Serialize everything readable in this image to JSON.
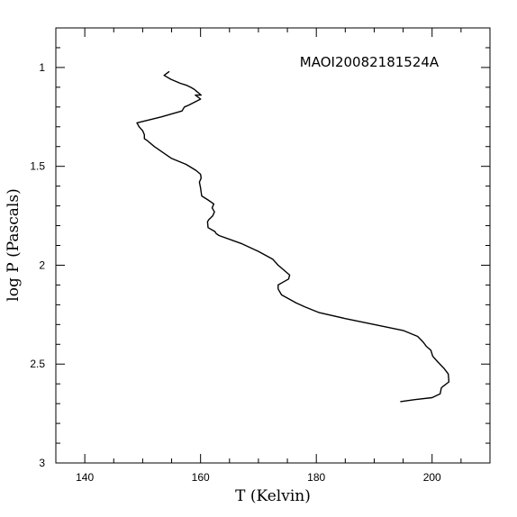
{
  "chart_data": {
    "type": "line",
    "title": "MAOI20082181524A",
    "xlabel": "T (Kelvin)",
    "ylabel": "log P (Pascals)",
    "xlim": [
      135,
      210
    ],
    "ylim": [
      0.8,
      3.0
    ],
    "y_inverted": true,
    "grid": false,
    "x_ticks": [
      140,
      160,
      180,
      200
    ],
    "y_ticks": [
      1,
      1.5,
      2,
      2.5,
      3
    ],
    "x_tick_labels": [
      "140",
      "160",
      "180",
      "200"
    ],
    "y_tick_labels": [
      "1",
      "1.5",
      "2",
      "2.5",
      "3"
    ],
    "series": [
      {
        "color": "#000000",
        "x": [
          154.6,
          153.7,
          154.9,
          156.5,
          157.6,
          158.3,
          158.9,
          159.3,
          160.1,
          159.1,
          160.0,
          158.0,
          157.2,
          156.8,
          153.2,
          149.0,
          149.4,
          150.0,
          150.3,
          150.3,
          150.8,
          152.0,
          155.0,
          157.5,
          159.2,
          160.0,
          160.1,
          159.8,
          160.0,
          160.1,
          160.2,
          161.3,
          162.3,
          162.0,
          162.4,
          162.1,
          161.4,
          161.2,
          161.3,
          162.5,
          162.7,
          163.2,
          167.0,
          170.0,
          172.5,
          173.4,
          173.8,
          174.6,
          175.4,
          175.2,
          174.0,
          173.4,
          173.4,
          174.0,
          176.5,
          178.0,
          180.5,
          185.0,
          190.0,
          195.0,
          197.5,
          198.5,
          199.0,
          199.8,
          200.1,
          201.0,
          202.0,
          202.8,
          202.9,
          202.0,
          201.6,
          201.4,
          200.0,
          197.0,
          194.5
        ],
        "y": [
          1.02,
          1.04,
          1.06,
          1.08,
          1.09,
          1.1,
          1.11,
          1.12,
          1.14,
          1.14,
          1.16,
          1.19,
          1.2,
          1.22,
          1.25,
          1.28,
          1.3,
          1.32,
          1.34,
          1.36,
          1.37,
          1.4,
          1.46,
          1.49,
          1.52,
          1.54,
          1.56,
          1.58,
          1.61,
          1.63,
          1.65,
          1.67,
          1.69,
          1.71,
          1.73,
          1.75,
          1.77,
          1.78,
          1.81,
          1.83,
          1.84,
          1.85,
          1.89,
          1.93,
          1.97,
          2.0,
          2.01,
          2.03,
          2.05,
          2.07,
          2.09,
          2.1,
          2.12,
          2.15,
          2.19,
          2.21,
          2.24,
          2.27,
          2.3,
          2.33,
          2.36,
          2.39,
          2.41,
          2.43,
          2.46,
          2.49,
          2.52,
          2.55,
          2.59,
          2.61,
          2.62,
          2.65,
          2.67,
          2.68,
          2.69
        ]
      }
    ]
  }
}
